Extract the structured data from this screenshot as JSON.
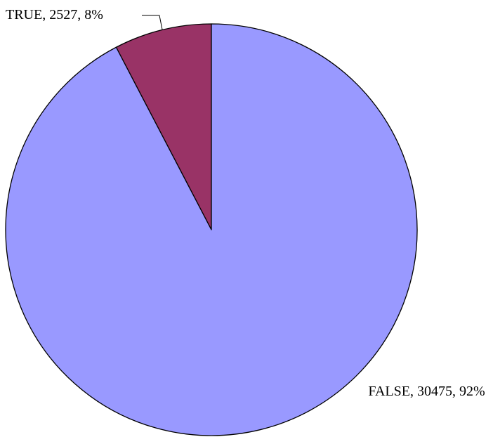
{
  "chart_data": {
    "type": "pie",
    "categories": [
      "FALSE",
      "TRUE"
    ],
    "values": [
      30475,
      2527
    ],
    "value_labels": [
      "FALSE, 30475, 92%",
      "TRUE, 2527, 8%"
    ],
    "colors": [
      "#9999ff",
      "#993366"
    ]
  }
}
